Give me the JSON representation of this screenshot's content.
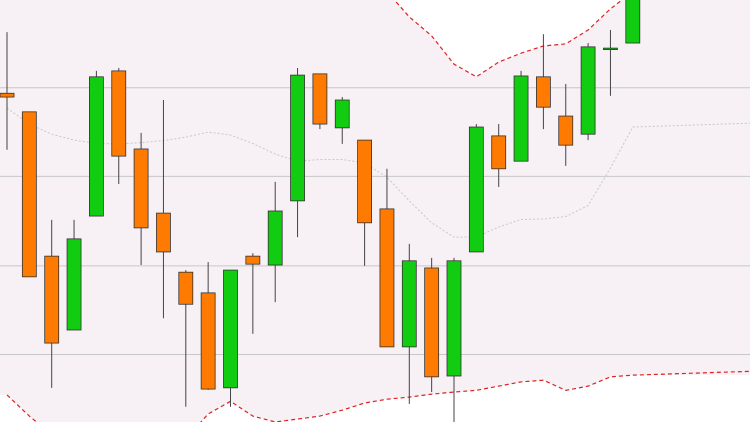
{
  "chart_data": {
    "type": "candlestick",
    "title": "",
    "xlabel": "",
    "ylabel": "",
    "ylim": [
      0,
      100
    ],
    "grid": true,
    "axis_labels_visible": false,
    "colors": {
      "up": "#11cc11",
      "down": "#ff7a00",
      "wick": "#444444",
      "band": "#f7f0f4",
      "band_line": "#dd2222",
      "mid_line": "#c8c8c8",
      "grid": "#c8c8c8"
    },
    "gridlines": [
      79.2,
      58.2,
      37.0,
      16.0
    ],
    "candles": [
      {
        "o": 77.9,
        "c": 77.0,
        "h": 92.4,
        "l": 64.5
      },
      {
        "o": 73.5,
        "c": 34.4,
        "h": 73.5,
        "l": 34.4
      },
      {
        "o": 39.3,
        "c": 18.7,
        "h": 47.9,
        "l": 8.1
      },
      {
        "o": 21.8,
        "c": 43.4,
        "h": 47.9,
        "l": 21.8
      },
      {
        "o": 48.8,
        "c": 81.8,
        "h": 83.2,
        "l": 48.8
      },
      {
        "o": 83.2,
        "c": 63.0,
        "h": 83.9,
        "l": 56.4
      },
      {
        "o": 64.7,
        "c": 46.0,
        "h": 68.5,
        "l": 37.2
      },
      {
        "o": 49.5,
        "c": 40.3,
        "h": 76.3,
        "l": 24.6
      },
      {
        "o": 35.5,
        "c": 27.9,
        "h": 36.0,
        "l": 3.6
      },
      {
        "o": 30.6,
        "c": 7.8,
        "h": 37.9,
        "l": 7.6
      },
      {
        "o": 8.1,
        "c": 36.0,
        "h": 36.0,
        "l": 3.6
      },
      {
        "o": 39.3,
        "c": 37.4,
        "h": 40.0,
        "l": 20.9
      },
      {
        "o": 37.2,
        "c": 50.0,
        "h": 56.9,
        "l": 28.4
      },
      {
        "o": 52.4,
        "c": 82.2,
        "h": 83.9,
        "l": 43.8
      },
      {
        "o": 82.5,
        "c": 70.6,
        "h": 82.5,
        "l": 69.4
      },
      {
        "o": 69.7,
        "c": 76.3,
        "h": 77.0,
        "l": 65.9
      },
      {
        "o": 66.8,
        "c": 47.2,
        "h": 66.8,
        "l": 37.0
      },
      {
        "o": 50.5,
        "c": 17.8,
        "h": 60.0,
        "l": 17.8
      },
      {
        "o": 17.8,
        "c": 38.2,
        "h": 42.2,
        "l": 4.3
      },
      {
        "o": 36.5,
        "c": 10.7,
        "h": 38.9,
        "l": 7.1
      },
      {
        "o": 10.9,
        "c": 38.2,
        "h": 38.9,
        "l": 0.0
      },
      {
        "o": 40.3,
        "c": 69.9,
        "h": 70.6,
        "l": 40.3
      },
      {
        "o": 67.8,
        "c": 60.0,
        "h": 70.6,
        "l": 55.7
      },
      {
        "o": 61.8,
        "c": 82.0,
        "h": 83.2,
        "l": 61.8
      },
      {
        "o": 81.8,
        "c": 74.6,
        "h": 91.9,
        "l": 69.4
      },
      {
        "o": 72.5,
        "c": 65.6,
        "h": 80.1,
        "l": 60.7
      },
      {
        "o": 68.2,
        "c": 88.9,
        "h": 89.8,
        "l": 66.8
      },
      {
        "o": 88.6,
        "c": 88.6,
        "h": 92.9,
        "l": 77.3
      },
      {
        "o": 89.8,
        "c": 102.0,
        "h": 102.0,
        "l": 89.8
      }
    ],
    "upper_band": [
      null,
      null,
      null,
      null,
      null,
      null,
      null,
      null,
      null,
      null,
      null,
      null,
      null,
      null,
      null,
      null,
      null,
      102.0,
      96.0,
      91.5,
      84.8,
      81.8,
      85.3,
      87.4,
      89.1,
      89.6,
      92.9,
      97.9,
      102.0
    ],
    "middle_band": [
      74.4,
      70.6,
      68.2,
      66.8,
      66.0,
      65.9,
      66.2,
      66.7,
      67.5,
      68.7,
      68.0,
      66.0,
      63.5,
      61.8,
      62.2,
      62.2,
      61.4,
      58.0,
      52.4,
      47.2,
      43.8,
      43.8,
      46.2,
      48.0,
      48.1,
      48.7,
      51.3,
      60.2,
      69.9
    ],
    "lower_band": [
      6.4,
      1.4,
      -3.0,
      -4.3,
      -2.8,
      -1.6,
      -2.1,
      -3.3,
      -4.0,
      1.9,
      4.9,
      1.4,
      0.0,
      0.7,
      1.4,
      2.8,
      4.5,
      5.4,
      5.9,
      6.6,
      7.1,
      7.5,
      8.5,
      9.5,
      9.9,
      7.5,
      8.5,
      10.7,
      11.1
    ]
  }
}
